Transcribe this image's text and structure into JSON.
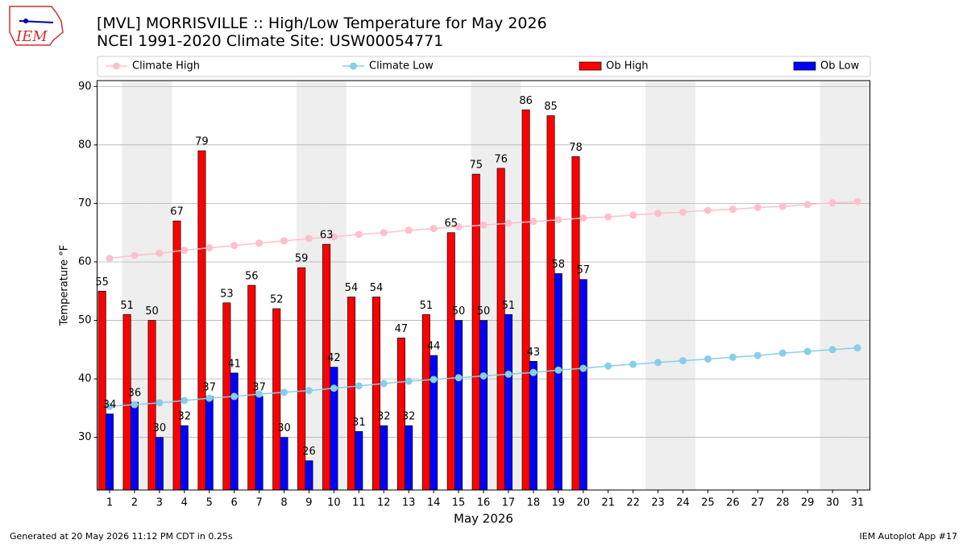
{
  "logo_text": "IEM",
  "footer_left": "Generated at 20 May 2026 11:12 PM CDT in 0.25s",
  "footer_right": "IEM Autoplot App #17",
  "chart_data": {
    "type": "combo",
    "title": "[MVL] MORRISVILLE :: High/Low Temperature for May 2026",
    "subtitle": "NCEI 1991-2020 Climate Site: USW00054771",
    "xlabel": "May 2026",
    "ylabel": "Temperature °F",
    "x": [
      1,
      2,
      3,
      4,
      5,
      6,
      7,
      8,
      9,
      10,
      11,
      12,
      13,
      14,
      15,
      16,
      17,
      18,
      19,
      20,
      21,
      22,
      23,
      24,
      25,
      26,
      27,
      28,
      29,
      30,
      31
    ],
    "xlim": [
      0.5,
      31.5
    ],
    "xticks": [
      1,
      2,
      3,
      4,
      5,
      6,
      7,
      8,
      9,
      10,
      11,
      12,
      13,
      14,
      15,
      16,
      17,
      18,
      19,
      20,
      21,
      22,
      23,
      24,
      25,
      26,
      27,
      28,
      29,
      30,
      31
    ],
    "ylim": [
      21,
      91
    ],
    "yticks": [
      30,
      40,
      50,
      60,
      70,
      80,
      90
    ],
    "grid": true,
    "shaded_days": [
      2,
      3,
      9,
      10,
      16,
      17,
      23,
      24,
      30,
      31
    ],
    "shade_color": "#eeeeee",
    "legend_position": "top",
    "series": [
      {
        "name": "Climate High",
        "type": "line",
        "color": "#ffc0cb",
        "values": [
          60.6,
          61.1,
          61.5,
          62.0,
          62.4,
          62.8,
          63.2,
          63.6,
          64.0,
          64.3,
          64.7,
          65.0,
          65.4,
          65.7,
          66.0,
          66.3,
          66.6,
          66.9,
          67.2,
          67.5,
          67.7,
          68.0,
          68.3,
          68.5,
          68.8,
          69.0,
          69.3,
          69.5,
          69.8,
          70.1,
          70.3
        ]
      },
      {
        "name": "Climate Low",
        "type": "line",
        "color": "#87ceeb",
        "values": [
          35.3,
          35.6,
          35.9,
          36.3,
          36.7,
          37.0,
          37.4,
          37.7,
          38.0,
          38.4,
          38.8,
          39.2,
          39.6,
          39.9,
          40.2,
          40.5,
          40.8,
          41.1,
          41.5,
          41.8,
          42.2,
          42.5,
          42.8,
          43.1,
          43.4,
          43.7,
          44.0,
          44.4,
          44.7,
          45.0,
          45.3
        ]
      },
      {
        "name": "Ob High",
        "type": "bar",
        "color": "#ff0000",
        "values": [
          55,
          51,
          50,
          67,
          79,
          53,
          56,
          52,
          59,
          63,
          54,
          54,
          47,
          51,
          65,
          75,
          76,
          86,
          85,
          78,
          null,
          null,
          null,
          null,
          null,
          null,
          null,
          null,
          null,
          null,
          null
        ]
      },
      {
        "name": "Ob Low",
        "type": "bar",
        "color": "#0000ff",
        "values": [
          34,
          36,
          30,
          32,
          37,
          41,
          37,
          30,
          26,
          42,
          31,
          32,
          32,
          44,
          50,
          50,
          51,
          43,
          58,
          57,
          null,
          null,
          null,
          null,
          null,
          null,
          null,
          null,
          null,
          null,
          null
        ]
      }
    ]
  }
}
